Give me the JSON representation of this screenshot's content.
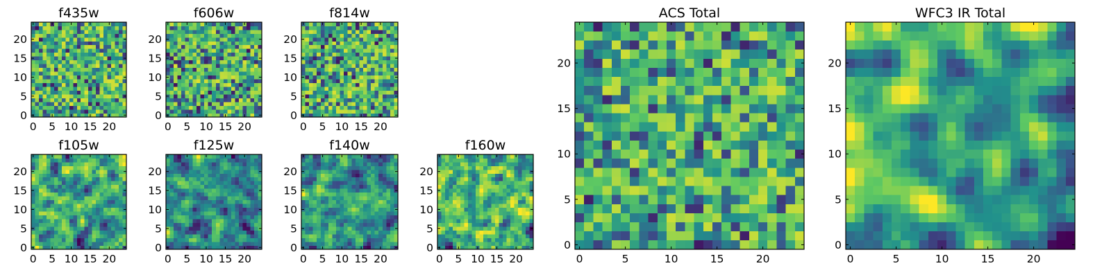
{
  "chart_data": [
    {
      "type": "heatmap",
      "title": "f435w",
      "grid_size": 25,
      "xticks": [
        "0",
        "5",
        "10",
        "15",
        "20"
      ],
      "yticks": [
        "0",
        "5",
        "10",
        "15",
        "20"
      ],
      "seed": 11,
      "smooth": 0,
      "gain": 0.9
    },
    {
      "type": "heatmap",
      "title": "f606w",
      "grid_size": 25,
      "xticks": [
        "0",
        "5",
        "10",
        "15",
        "20"
      ],
      "yticks": [
        "0",
        "5",
        "10",
        "15",
        "20"
      ],
      "seed": 23,
      "smooth": 0,
      "gain": 0.9
    },
    {
      "type": "heatmap",
      "title": "f814w",
      "grid_size": 25,
      "xticks": [
        "0",
        "5",
        "10",
        "15",
        "20"
      ],
      "yticks": [
        "0",
        "5",
        "10",
        "15",
        "20"
      ],
      "seed": 37,
      "smooth": 0,
      "gain": 0.9
    },
    {
      "type": "heatmap",
      "title": "f105w",
      "grid_size": 25,
      "xticks": [
        "0",
        "5",
        "10",
        "15",
        "20"
      ],
      "yticks": [
        "0",
        "5",
        "10",
        "15",
        "20"
      ],
      "seed": 41,
      "smooth": 1,
      "gain": 1.0
    },
    {
      "type": "heatmap",
      "title": "f125w",
      "grid_size": 25,
      "xticks": [
        "0",
        "5",
        "10",
        "15",
        "20"
      ],
      "yticks": [
        "0",
        "5",
        "10",
        "15",
        "20"
      ],
      "seed": 53,
      "smooth": 1,
      "gain": 1.0
    },
    {
      "type": "heatmap",
      "title": "f140w",
      "grid_size": 25,
      "xticks": [
        "0",
        "5",
        "10",
        "15",
        "20"
      ],
      "yticks": [
        "0",
        "5",
        "10",
        "15",
        "20"
      ],
      "seed": 67,
      "smooth": 1,
      "gain": 1.0
    },
    {
      "type": "heatmap",
      "title": "f160w",
      "grid_size": 25,
      "xticks": [
        "0",
        "5",
        "10",
        "15",
        "20"
      ],
      "yticks": [
        "0",
        "5",
        "10",
        "15",
        "20"
      ],
      "seed": 79,
      "smooth": 1,
      "gain": 1.1
    },
    {
      "type": "heatmap",
      "title": "ACS Total",
      "grid_size": 25,
      "xticks": [
        "0",
        "5",
        "10",
        "15",
        "20"
      ],
      "yticks": [
        "0",
        "5",
        "10",
        "15",
        "20"
      ],
      "seed": 97,
      "smooth": 0,
      "gain": 0.85
    },
    {
      "type": "heatmap",
      "title": "WFC3 IR Total",
      "grid_size": 25,
      "xticks": [
        "0",
        "5",
        "10",
        "15",
        "20"
      ],
      "yticks": [
        "0",
        "5",
        "10",
        "15",
        "20"
      ],
      "seed": 113,
      "smooth": 2,
      "gain": 1.1
    }
  ],
  "colormap": [
    "#440154",
    "#3b528b",
    "#21918c",
    "#5ec962",
    "#fde725"
  ]
}
